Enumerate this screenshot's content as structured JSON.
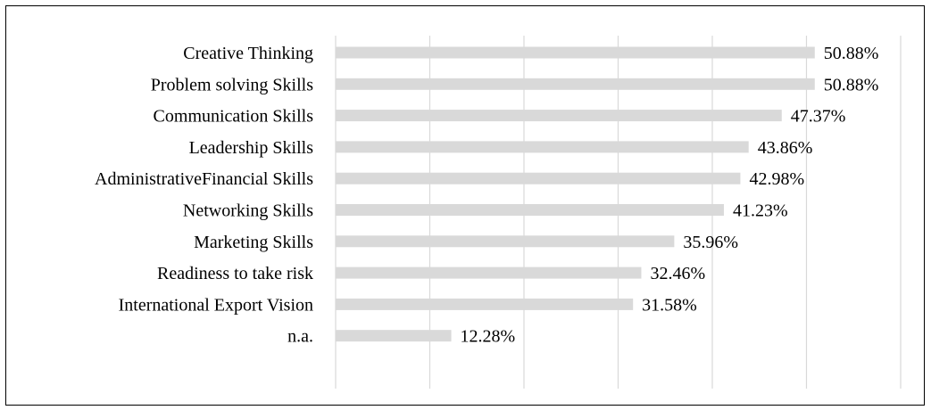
{
  "chart_data": {
    "type": "bar",
    "orientation": "horizontal",
    "categories": [
      "Creative Thinking",
      "Problem solving Skills",
      "Communication Skills",
      "Leadership Skills",
      "AdministrativeFinancial Skills",
      "Networking Skills",
      "Marketing Skills",
      "Readiness to take risk",
      "International Export Vision",
      "n.a."
    ],
    "values": [
      50.88,
      50.88,
      47.37,
      43.86,
      42.98,
      41.23,
      35.96,
      32.46,
      31.58,
      12.28
    ],
    "value_labels": [
      "50.88%",
      "50.88%",
      "47.37%",
      "43.86%",
      "42.98%",
      "41.23%",
      "35.96%",
      "32.46%",
      "31.58%",
      "12.28%"
    ],
    "xlim": [
      0,
      60
    ],
    "grid": true,
    "bar_color": "#d9d9d9",
    "grid_color": "#d9d9d9"
  }
}
